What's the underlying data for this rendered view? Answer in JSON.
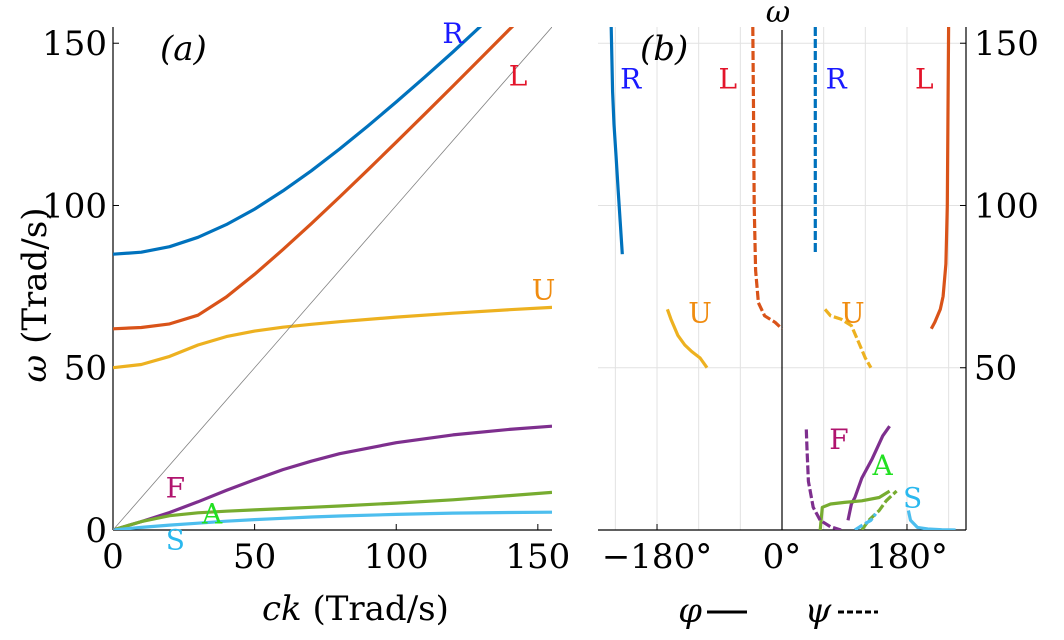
{
  "chart_data": [
    {
      "panel_label": "(a)",
      "type": "line",
      "xlabel": "ck (Trad/s)",
      "ylabel": "ω (Trad/s)",
      "xlim": [
        0,
        155
      ],
      "ylim": [
        0,
        155
      ],
      "x_ticks": [
        0,
        50,
        100,
        150
      ],
      "y_ticks": [
        0,
        50,
        100,
        150
      ],
      "grid": false,
      "series": [
        {
          "name": "R",
          "color": "#0072bd",
          "x": [
            0,
            10,
            20,
            30,
            40,
            50,
            60,
            70,
            80,
            90,
            100,
            110,
            120,
            130,
            138
          ],
          "y": [
            85,
            85.6,
            87.3,
            90.2,
            94.1,
            98.9,
            104.5,
            110.7,
            117.4,
            124.5,
            131.9,
            139.5,
            147.3,
            155.4,
            161
          ]
        },
        {
          "name": "L",
          "color": "#d95319",
          "x": [
            0,
            10,
            20,
            30,
            40,
            50,
            60,
            70,
            80,
            90,
            100,
            110,
            120,
            130,
            140,
            148
          ],
          "y": [
            62,
            62.4,
            63.5,
            66.2,
            71.8,
            78.8,
            86.4,
            94.4,
            102.6,
            111,
            119.5,
            128.1,
            136.8,
            145.5,
            154.3,
            161
          ]
        },
        {
          "name": "U",
          "color": "#edb120",
          "x": [
            0,
            10,
            20,
            30,
            40,
            50,
            60,
            70,
            80,
            100,
            120,
            140,
            155
          ],
          "y": [
            50,
            51,
            53.5,
            57,
            59.6,
            61.3,
            62.5,
            63.4,
            64.2,
            65.6,
            66.8,
            67.9,
            68.6
          ]
        },
        {
          "name": "F",
          "color": "#7e2f8e",
          "x": [
            0,
            10,
            20,
            30,
            40,
            50,
            60,
            70,
            80,
            100,
            120,
            140,
            155
          ],
          "y": [
            0,
            2.6,
            5.4,
            8.7,
            12.2,
            15.5,
            18.6,
            21.2,
            23.5,
            26.9,
            29.3,
            31,
            32
          ]
        },
        {
          "name": "A",
          "color": "#77ac30",
          "x": [
            0,
            10,
            20,
            30,
            40,
            50,
            60,
            70,
            80,
            100,
            120,
            140,
            155
          ],
          "y": [
            0,
            2.6,
            4.4,
            5.3,
            5.8,
            6.2,
            6.6,
            7,
            7.4,
            8.3,
            9.3,
            10.6,
            11.6
          ]
        },
        {
          "name": "S",
          "color": "#4dbeee",
          "x": [
            0,
            10,
            20,
            30,
            40,
            50,
            60,
            70,
            80,
            100,
            120,
            140,
            155
          ],
          "y": [
            0,
            0.8,
            1.5,
            2.1,
            2.7,
            3.2,
            3.6,
            4,
            4.3,
            4.8,
            5.2,
            5.4,
            5.5
          ]
        },
        {
          "name": "",
          "color": "#808080",
          "x": [
            0,
            155
          ],
          "y": [
            0,
            155
          ]
        }
      ],
      "curve_labels": [
        {
          "text": "R",
          "color": "#1a1aff",
          "x": 120,
          "y": 150
        },
        {
          "text": "L",
          "color": "#e3142a",
          "x": 143,
          "y": 137
        },
        {
          "text": "U",
          "color": "#f08c10",
          "x": 152,
          "y": 71
        },
        {
          "text": "F",
          "color": "#b0146e",
          "x": 22,
          "y": 10
        },
        {
          "text": "A",
          "color": "#22e022",
          "x": 35,
          "y": 2
        },
        {
          "text": "S",
          "color": "#2ab8ee",
          "x": 22,
          "y": -6
        }
      ]
    },
    {
      "panel_label": "(b)",
      "type": "line",
      "ylabel": "ω",
      "xlabel_solid": "φ",
      "xlabel_dashed": "ψ",
      "x_unit": "degrees",
      "xlim": [
        -265,
        265
      ],
      "ylim": [
        0,
        155
      ],
      "x_ticks": [
        -180,
        0,
        180
      ],
      "x_tick_labels": [
        "−180°",
        "0°",
        "180°"
      ],
      "y_ticks": [
        50,
        100,
        150
      ],
      "grid": true,
      "series": [
        {
          "name": "R",
          "color": "#0072bd",
          "dashed": false,
          "x": [
            -246,
            -245,
            -244,
            -242,
            -239,
            -236,
            -233,
            -230
          ],
          "y": [
            155,
            145,
            135,
            125,
            115,
            105,
            95,
            85
          ]
        },
        {
          "name": "L",
          "color": "#d95319",
          "dashed": false,
          "x": [
            215,
            220,
            228,
            232,
            236,
            238,
            239,
            240
          ],
          "y": [
            62,
            64,
            68,
            72,
            82,
            100,
            125,
            155
          ]
        },
        {
          "name": "U",
          "color": "#edb120",
          "dashed": false,
          "x": [
            -165,
            -160,
            -150,
            -140,
            -130,
            -118,
            -108
          ],
          "y": [
            68,
            65,
            60,
            57,
            55,
            53,
            50
          ]
        },
        {
          "name": "F",
          "color": "#7e2f8e",
          "dashed": false,
          "x": [
            95,
            100,
            105,
            115,
            130,
            145,
            155
          ],
          "y": [
            3,
            8,
            10,
            16,
            22,
            29,
            32
          ]
        },
        {
          "name": "A",
          "color": "#77ac30",
          "dashed": false,
          "x": [
            55,
            58,
            70,
            90,
            115,
            140,
            155
          ],
          "y": [
            0,
            7,
            8,
            8.5,
            9,
            10,
            12
          ]
        },
        {
          "name": "S",
          "color": "#4dbeee",
          "dashed": false,
          "x": [
            182,
            185,
            195,
            210,
            230,
            250
          ],
          "y": [
            6,
            3,
            0.8,
            0.3,
            0.1,
            0
          ]
        },
        {
          "name": "R",
          "color": "#0072bd",
          "dashed": true,
          "x": [
            48,
            48
          ],
          "y": [
            155,
            85
          ]
        },
        {
          "name": "L",
          "color": "#d95319",
          "dashed": true,
          "x": [
            -42,
            -41,
            -40,
            -38,
            -34,
            -25,
            -10,
            0
          ],
          "y": [
            155,
            130,
            100,
            80,
            70,
            66,
            64,
            62
          ]
        },
        {
          "name": "U",
          "color": "#edb120",
          "dashed": true,
          "x": [
            62,
            70,
            85,
            100,
            110,
            120,
            128
          ],
          "y": [
            68,
            66,
            65,
            63,
            58,
            53,
            50
          ]
        },
        {
          "name": "F",
          "color": "#7e2f8e",
          "dashed": true,
          "x": [
            35,
            36,
            38,
            45,
            55,
            70,
            85
          ],
          "y": [
            31,
            25,
            15,
            7,
            3,
            1,
            0
          ]
        },
        {
          "name": "A",
          "color": "#77ac30",
          "dashed": true,
          "x": [
            115,
            125,
            140,
            150,
            160,
            165
          ],
          "y": [
            0,
            3,
            6,
            9,
            11,
            12
          ]
        },
        {
          "name": "S",
          "color": "#4dbeee",
          "dashed": true,
          "x": [
            105,
            112,
            120,
            128,
            135
          ],
          "y": [
            0,
            1,
            2,
            3,
            5
          ]
        }
      ],
      "curve_labels": [
        {
          "text": "R",
          "color": "#1a1aff",
          "x": -218,
          "y": 136
        },
        {
          "text": "L",
          "color": "#e3142a",
          "x": -78,
          "y": 136
        },
        {
          "text": "R",
          "color": "#1a1aff",
          "x": 78,
          "y": 136
        },
        {
          "text": "L",
          "color": "#e3142a",
          "x": 205,
          "y": 136
        },
        {
          "text": "U",
          "color": "#f08c10",
          "x": -118,
          "y": 64
        },
        {
          "text": "U",
          "color": "#f08c10",
          "x": 102,
          "y": 64
        },
        {
          "text": "F",
          "color": "#b0146e",
          "x": 82,
          "y": 25
        },
        {
          "text": "A",
          "color": "#22e022",
          "x": 145,
          "y": 17
        },
        {
          "text": "S",
          "color": "#2ab8ee",
          "x": 188,
          "y": 7
        }
      ]
    }
  ]
}
